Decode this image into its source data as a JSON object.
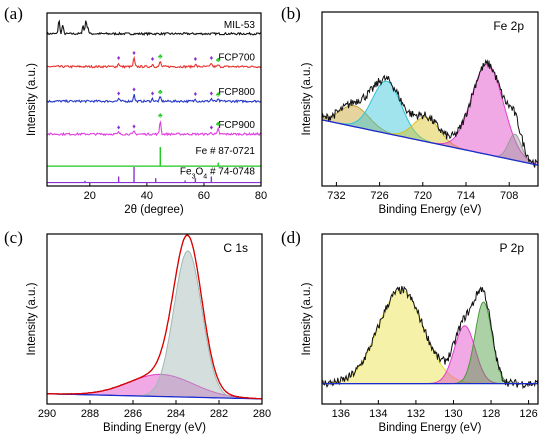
{
  "chart_data": [
    {
      "panel": "(a)",
      "type": "line",
      "xlabel": "2θ (degree)",
      "ylabel": "Intensity (a.u.)",
      "xlim": [
        5,
        80
      ],
      "xticks": [
        0,
        20,
        40,
        60,
        80
      ],
      "series": [
        {
          "name": "MIL-53",
          "color": "#111111",
          "offset": 0.88,
          "peaks": [
            [
              9.2,
              0.08
            ],
            [
              10.5,
              0.05
            ],
            [
              17.6,
              0.05
            ],
            [
              18.6,
              0.08
            ],
            [
              19.3,
              0.04
            ]
          ]
        },
        {
          "name": "FCP700",
          "color": "#e8322d",
          "offset": 0.69,
          "peaks": [
            [
              30.1,
              0.02
            ],
            [
              35.5,
              0.05
            ],
            [
              42.0,
              0.015
            ],
            [
              44.7,
              0.03
            ],
            [
              57.0,
              0.015
            ],
            [
              62.6,
              0.02
            ],
            [
              65.0,
              0.01
            ]
          ]
        },
        {
          "name": "FCP800",
          "color": "#2638c9",
          "offset": 0.49,
          "peaks": [
            [
              30.1,
              0.015
            ],
            [
              35.5,
              0.04
            ],
            [
              42.0,
              0.015
            ],
            [
              44.7,
              0.025
            ],
            [
              57.0,
              0.012
            ],
            [
              62.6,
              0.015
            ],
            [
              65.0,
              0.01
            ]
          ]
        },
        {
          "name": "FCP900",
          "color": "#e040e0",
          "offset": 0.3,
          "peaks": [
            [
              30.1,
              0.01
            ],
            [
              35.5,
              0.015
            ],
            [
              44.7,
              0.08
            ],
            [
              62.6,
              0.01
            ],
            [
              65.0,
              0.03
            ]
          ]
        }
      ],
      "references": [
        {
          "label_main": "Fe # 87-0721",
          "label_sub": "",
          "color": "#1ec81e",
          "base": 0.115,
          "sticks": [
            [
              44.7,
              0.11
            ],
            [
              65.0,
              0.02
            ]
          ]
        },
        {
          "label_main": "Fe",
          "sub1": "3",
          "mid": "O",
          "sub2": "4",
          "tail": " # 74-0748",
          "color": "#8a32d6",
          "base": 0.02,
          "sticks": [
            [
              18.3,
              0.01
            ],
            [
              30.1,
              0.035
            ],
            [
              35.5,
              0.09
            ],
            [
              43.1,
              0.025
            ],
            [
              53.4,
              0.012
            ],
            [
              57.0,
              0.025
            ],
            [
              62.6,
              0.035
            ]
          ]
        }
      ],
      "markers": {
        "star": "♦",
        "star_color": "#8a32d6",
        "fe": "♣",
        "fe_color": "#1ec81e"
      }
    },
    {
      "panel": "(b)",
      "type": "line",
      "element_label": "Fe 2p",
      "xlabel": "Binding Energy (eV)",
      "ylabel": "Intensity (a.u.)",
      "xlim": [
        734,
        704
      ],
      "xticks": [
        732,
        726,
        720,
        714,
        708
      ],
      "background": {
        "color": "#1a2bd0",
        "start": 0.38,
        "end": 0.12
      },
      "peaks": [
        {
          "center": 729.5,
          "height": 0.12,
          "width": 2.0,
          "color": "#c8a02a"
        },
        {
          "center": 725.0,
          "height": 0.3,
          "width": 2.0,
          "color": "#2fc4d8"
        },
        {
          "center": 719.5,
          "height": 0.14,
          "width": 1.8,
          "color": "#d8c020"
        },
        {
          "center": 711.0,
          "height": 0.52,
          "width": 2.2,
          "color": "#e040c8"
        },
        {
          "center": 707.2,
          "height": 0.15,
          "width": 0.9,
          "color": "#9a9a9a"
        }
      ]
    },
    {
      "panel": "(c)",
      "type": "line",
      "element_label": "C 1s",
      "xlabel": "Binding Energy (eV)",
      "ylabel": "Intensity (a.u.)",
      "xlim": [
        290,
        280
      ],
      "xticks": [
        290,
        288,
        286,
        284,
        282,
        280
      ],
      "background": {
        "color": "#1a2bd0",
        "start": 0.06,
        "end": 0.03
      },
      "peaks": [
        {
          "center": 284.7,
          "height": 0.13,
          "width": 1.5,
          "color": "#e040c8"
        },
        {
          "center": 283.45,
          "height": 0.86,
          "width": 0.65,
          "color": "#9fb8b4"
        }
      ]
    },
    {
      "panel": "(d)",
      "type": "line",
      "element_label": "P 2p",
      "xlabel": "Binding Energy (eV)",
      "ylabel": "Intensity (a.u.)",
      "xlim": [
        137,
        125.5
      ],
      "xticks": [
        136,
        134,
        132,
        130,
        128,
        126
      ],
      "background": {
        "color": "#1a2bd0",
        "start": 0.12,
        "end": 0.12
      },
      "peaks": [
        {
          "center": 132.8,
          "height": 0.55,
          "width": 1.2,
          "color": "#e8e040"
        },
        {
          "center": 129.4,
          "height": 0.34,
          "width": 0.55,
          "color": "#e040c8"
        },
        {
          "center": 128.4,
          "height": 0.48,
          "width": 0.45,
          "color": "#4a9a3a"
        }
      ]
    }
  ]
}
